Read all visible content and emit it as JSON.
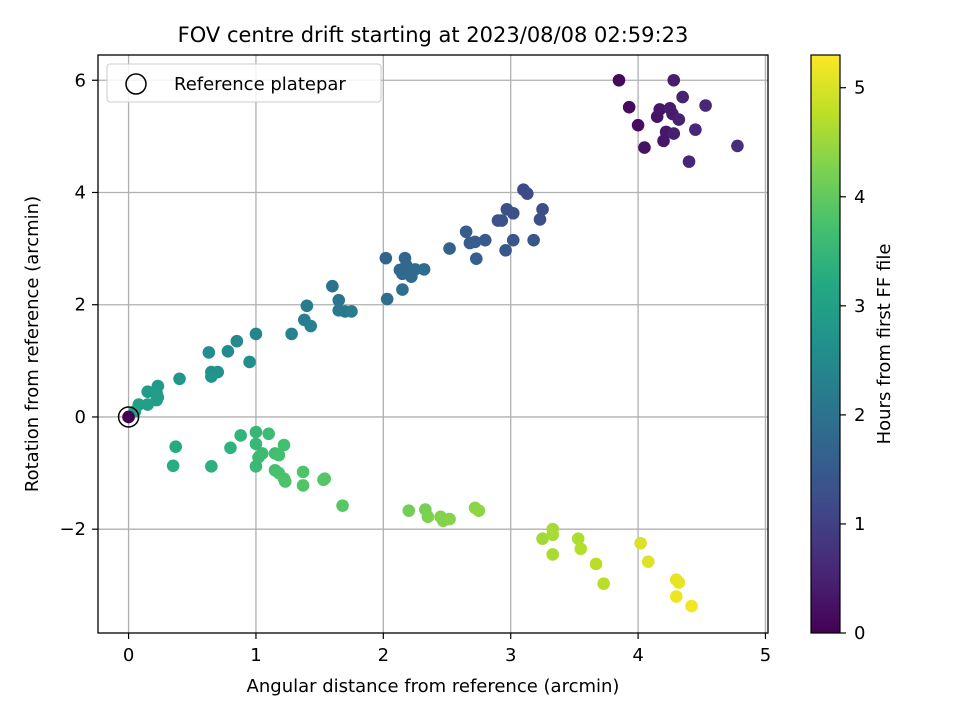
{
  "chart_data": {
    "type": "scatter",
    "title": "FOV centre drift starting at 2023/08/08 02:59:23",
    "xlabel": "Angular distance from reference (arcmin)",
    "ylabel": "Rotation from reference (arcmin)",
    "xlim": [
      -0.24,
      5.02
    ],
    "ylim": [
      -3.85,
      6.45
    ],
    "xticks": [
      0,
      1,
      2,
      3,
      4,
      5
    ],
    "xtick_labels": [
      "0",
      "1",
      "2",
      "3",
      "4",
      "5"
    ],
    "yticks": [
      -2,
      0,
      2,
      4,
      6
    ],
    "ytick_labels": [
      "−2",
      "0",
      "2",
      "4",
      "6"
    ],
    "grid": true,
    "legend": {
      "placement": "upper-left",
      "entries": [
        "Reference platepar"
      ]
    },
    "colorbar": {
      "label": "Hours from first FF file",
      "colormap": "viridis",
      "range": [
        0,
        5.3
      ],
      "ticks": [
        0,
        1,
        2,
        3,
        4,
        5
      ],
      "tick_labels": [
        "0",
        "1",
        "2",
        "3",
        "4",
        "5"
      ]
    },
    "reference_point": {
      "x": 0,
      "y": 0,
      "name": "Reference platepar"
    },
    "points": [
      [
        3.85,
        6.0,
        0.1
      ],
      [
        3.93,
        5.52,
        0.15
      ],
      [
        4.0,
        5.2,
        0.2
      ],
      [
        4.05,
        4.8,
        0.25
      ],
      [
        4.15,
        5.35,
        0.28
      ],
      [
        4.17,
        5.48,
        0.3
      ],
      [
        4.2,
        4.92,
        0.32
      ],
      [
        4.22,
        5.08,
        0.35
      ],
      [
        4.25,
        5.5,
        0.38
      ],
      [
        4.27,
        5.4,
        0.4
      ],
      [
        4.28,
        6.0,
        0.42
      ],
      [
        4.28,
        5.05,
        0.45
      ],
      [
        4.32,
        5.3,
        0.48
      ],
      [
        4.35,
        5.7,
        0.5
      ],
      [
        4.4,
        4.55,
        0.55
      ],
      [
        4.45,
        5.12,
        0.58
      ],
      [
        4.53,
        5.55,
        0.62
      ],
      [
        4.78,
        4.83,
        0.7
      ],
      [
        3.1,
        4.05,
        1.15
      ],
      [
        3.13,
        3.98,
        1.2
      ],
      [
        3.25,
        3.7,
        1.25
      ],
      [
        3.23,
        3.52,
        1.28
      ],
      [
        2.97,
        3.7,
        1.3
      ],
      [
        3.02,
        3.63,
        1.32
      ],
      [
        2.9,
        3.5,
        1.35
      ],
      [
        2.93,
        3.5,
        1.38
      ],
      [
        3.02,
        3.15,
        1.4
      ],
      [
        3.18,
        3.15,
        1.42
      ],
      [
        2.96,
        2.97,
        1.45
      ],
      [
        2.8,
        3.15,
        1.48
      ],
      [
        2.68,
        3.1,
        1.52
      ],
      [
        2.72,
        3.12,
        1.55
      ],
      [
        2.65,
        3.3,
        1.58
      ],
      [
        2.73,
        2.82,
        1.6
      ],
      [
        2.52,
        3.0,
        1.65
      ],
      [
        2.02,
        2.83,
        1.7
      ],
      [
        2.17,
        2.83,
        1.73
      ],
      [
        2.13,
        2.62,
        1.75
      ],
      [
        2.15,
        2.55,
        1.78
      ],
      [
        2.18,
        2.7,
        1.8
      ],
      [
        2.22,
        2.5,
        1.82
      ],
      [
        2.25,
        2.63,
        1.85
      ],
      [
        2.32,
        2.63,
        1.88
      ],
      [
        2.03,
        2.1,
        1.9
      ],
      [
        2.15,
        2.27,
        1.92
      ],
      [
        1.6,
        2.33,
        2.0
      ],
      [
        1.65,
        2.08,
        2.05
      ],
      [
        1.65,
        1.9,
        2.1
      ],
      [
        1.7,
        1.88,
        2.15
      ],
      [
        1.75,
        1.88,
        2.18
      ],
      [
        1.4,
        1.98,
        2.2
      ],
      [
        1.38,
        1.73,
        2.25
      ],
      [
        1.43,
        1.62,
        2.3
      ],
      [
        1.28,
        1.48,
        2.35
      ],
      [
        1.0,
        1.48,
        2.4
      ],
      [
        0.85,
        1.35,
        2.45
      ],
      [
        0.78,
        1.17,
        2.5
      ],
      [
        0.63,
        1.15,
        2.55
      ],
      [
        0.95,
        0.98,
        2.6
      ],
      [
        0.65,
        0.8,
        2.65
      ],
      [
        0.7,
        0.8,
        2.7
      ],
      [
        0.65,
        0.72,
        2.72
      ],
      [
        0.4,
        0.68,
        2.78
      ],
      [
        0.23,
        0.55,
        2.85
      ],
      [
        0.15,
        0.45,
        2.88
      ],
      [
        0.22,
        0.42,
        2.9
      ],
      [
        0.23,
        0.35,
        2.92
      ],
      [
        0.22,
        0.3,
        2.95
      ],
      [
        0.15,
        0.22,
        2.98
      ],
      [
        0.08,
        0.22,
        3.0
      ],
      [
        0.05,
        0.1,
        3.05
      ],
      [
        0.0,
        0.0,
        3.1
      ],
      [
        0.37,
        -0.53,
        3.25
      ],
      [
        0.35,
        -0.87,
        3.3
      ],
      [
        0.65,
        -0.88,
        3.35
      ],
      [
        0.8,
        -0.55,
        3.4
      ],
      [
        0.88,
        -0.33,
        3.45
      ],
      [
        1.0,
        -0.27,
        3.5
      ],
      [
        1.0,
        -0.48,
        3.52
      ],
      [
        1.0,
        -0.88,
        3.55
      ],
      [
        1.02,
        -0.72,
        3.58
      ],
      [
        1.05,
        -0.65,
        3.6
      ],
      [
        1.1,
        -0.3,
        3.62
      ],
      [
        1.15,
        -0.65,
        3.65
      ],
      [
        1.18,
        -0.68,
        3.68
      ],
      [
        1.22,
        -0.5,
        3.7
      ],
      [
        1.15,
        -0.95,
        3.72
      ],
      [
        1.18,
        -1.0,
        3.75
      ],
      [
        1.22,
        -1.1,
        3.78
      ],
      [
        1.23,
        -1.15,
        3.8
      ],
      [
        1.37,
        -0.98,
        3.82
      ],
      [
        1.37,
        -1.22,
        3.85
      ],
      [
        1.53,
        -1.12,
        3.88
      ],
      [
        1.54,
        -1.1,
        3.9
      ],
      [
        1.68,
        -1.58,
        3.92
      ],
      [
        2.2,
        -1.67,
        4.15
      ],
      [
        2.33,
        -1.65,
        4.2
      ],
      [
        2.35,
        -1.78,
        4.25
      ],
      [
        2.45,
        -1.78,
        4.28
      ],
      [
        2.47,
        -1.85,
        4.3
      ],
      [
        2.52,
        -1.82,
        4.33
      ],
      [
        2.72,
        -1.62,
        4.38
      ],
      [
        2.75,
        -1.67,
        4.4
      ],
      [
        3.25,
        -2.17,
        4.55
      ],
      [
        3.33,
        -2.0,
        4.58
      ],
      [
        3.33,
        -2.1,
        4.6
      ],
      [
        3.33,
        -2.45,
        4.62
      ],
      [
        3.53,
        -2.17,
        4.65
      ],
      [
        3.55,
        -2.35,
        4.7
      ],
      [
        3.67,
        -2.62,
        4.75
      ],
      [
        3.73,
        -2.97,
        4.72
      ],
      [
        4.02,
        -2.25,
        5.0
      ],
      [
        4.08,
        -2.58,
        5.05
      ],
      [
        4.3,
        -2.9,
        5.1
      ],
      [
        4.32,
        -2.95,
        5.12
      ],
      [
        4.3,
        -3.2,
        5.15
      ],
      [
        4.42,
        -3.37,
        5.2
      ],
      [
        0.0,
        0.0,
        0.0
      ]
    ]
  }
}
